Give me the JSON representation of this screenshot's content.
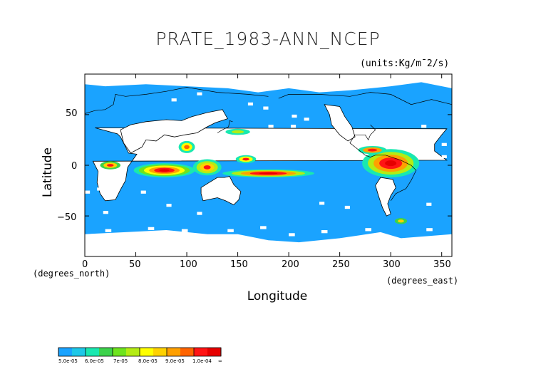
{
  "title": "PRATE_1983-ANN_NCEP",
  "units": "(units:Kg/m¯2/s)",
  "x_axis": {
    "label": "Longitude",
    "unit_note": "(degrees_east)",
    "ticks": [
      "0",
      "50",
      "100",
      "150",
      "200",
      "250",
      "300",
      "350"
    ],
    "tick_values": [
      0,
      50,
      100,
      150,
      200,
      250,
      300,
      350
    ],
    "range": [
      0,
      360
    ]
  },
  "y_axis": {
    "label": "Latitude",
    "unit_note": "(degrees_north)",
    "ticks": [
      "50",
      "0",
      "−50"
    ],
    "tick_values": [
      50,
      0,
      -50
    ],
    "range": [
      -90,
      90
    ]
  },
  "colorbar": {
    "labels": [
      "5.0e-05",
      "6.0e-05",
      "7e-05",
      "8.0e-05",
      "9.0e-05",
      "1.0e-04",
      "∞"
    ],
    "colors": [
      "#1aa3ff",
      "#1ec8e8",
      "#19e8b0",
      "#3cd24b",
      "#6ee41e",
      "#b4ec14",
      "#ffff00",
      "#ffd200",
      "#ffa000",
      "#ff6400",
      "#ff1414",
      "#e60000"
    ]
  },
  "colors": {
    "ocean_background": "#1aa3ff",
    "land_low": "#ffffff",
    "coastline": "#000000"
  }
}
